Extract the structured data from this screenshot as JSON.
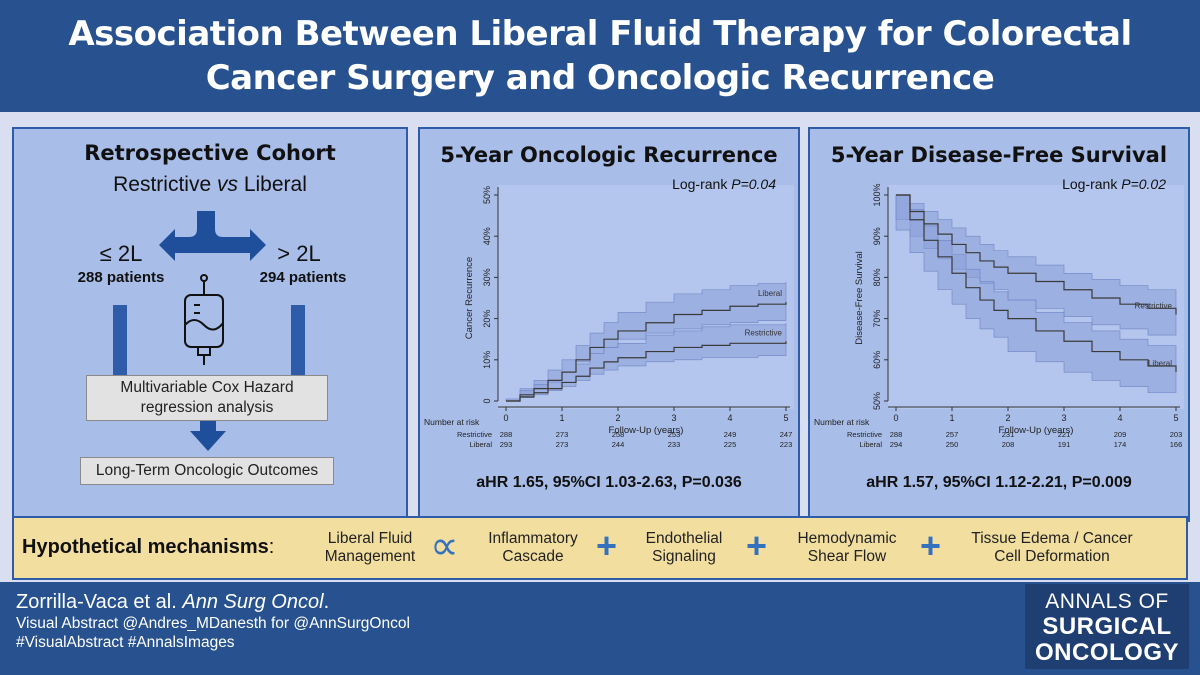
{
  "header": {
    "title": "Association Between Liberal Fluid Therapy for Colorectal Cancer Surgery and Oncologic Recurrence"
  },
  "design": {
    "heading": "Retrospective Cohort",
    "subheading_left": "Restrictive",
    "subheading_vs": "vs",
    "subheading_right": "Liberal",
    "left_group_label": "≤ 2L",
    "left_group_patients": "288 patients",
    "right_group_label": "> 2L",
    "right_group_patients": "294 patients",
    "analysis_box": "Multivariable Cox Hazard regression analysis",
    "outcome_box": "Long-Term Oncologic Outcomes"
  },
  "chart_data": [
    {
      "type": "line",
      "title": "5-Year Oncologic Recurrence",
      "annotation_prefix": "Log-rank ",
      "annotation_p": "P=0.04",
      "xlabel": "Follow-Up (years)",
      "ylabel": "Cancer Recurrence",
      "xlim": [
        0,
        5
      ],
      "ylim": [
        0,
        50
      ],
      "x_ticks": [
        "0",
        "1",
        "2",
        "3",
        "4",
        "5"
      ],
      "y_ticks": [
        "0",
        "10%",
        "20%",
        "30%",
        "40%",
        "50%"
      ],
      "series": [
        {
          "name": "Liberal",
          "x": [
            0,
            0.25,
            0.5,
            0.75,
            1.0,
            1.25,
            1.5,
            1.75,
            2.0,
            2.5,
            3.0,
            3.5,
            4.0,
            4.5,
            5.0
          ],
          "values": [
            0,
            1.5,
            3,
            5,
            7,
            10,
            13,
            15,
            17,
            19,
            21,
            22,
            23,
            23.5,
            24
          ],
          "ci_low": [
            0,
            0.5,
            1.5,
            3,
            4.5,
            7,
            9.5,
            11.5,
            13,
            15,
            16.5,
            17.5,
            18.5,
            19,
            19.5
          ],
          "ci_high": [
            0,
            3,
            5,
            7.5,
            10,
            13.5,
            16.5,
            19,
            21.5,
            24,
            26,
            27,
            28,
            28.5,
            29
          ]
        },
        {
          "name": "Restrictive",
          "x": [
            0,
            0.25,
            0.5,
            0.75,
            1.0,
            1.25,
            1.5,
            1.75,
            2.0,
            2.5,
            3.0,
            3.5,
            4.0,
            4.5,
            5.0
          ],
          "values": [
            0,
            1,
            2,
            3,
            4.5,
            6,
            8,
            9.5,
            10.5,
            12,
            13,
            13.5,
            14,
            14,
            14.5
          ],
          "ci_low": [
            0,
            0,
            0.8,
            1.5,
            2.5,
            3.5,
            5,
            6.5,
            7.5,
            8.5,
            9.5,
            10,
            10.5,
            10.5,
            11
          ],
          "ci_high": [
            0,
            2.5,
            4,
            5,
            7,
            9,
            11.5,
            13,
            14,
            16,
            17,
            18,
            18.5,
            18.5,
            19
          ]
        }
      ],
      "risk_table": {
        "title": "Number at risk",
        "rows": [
          {
            "label": "Restrictive",
            "values": [
              "288",
              "273",
              "258",
              "253",
              "249",
              "247"
            ]
          },
          {
            "label": "Liberal",
            "values": [
              "293",
              "273",
              "244",
              "233",
              "225",
              "223"
            ]
          }
        ]
      },
      "hr_text": "aHR 1.65, 95%CI 1.03-2.63, P=0.036"
    },
    {
      "type": "line",
      "title": "5-Year Disease-Free Survival",
      "annotation_prefix": "Log-rank ",
      "annotation_p": "P=0.02",
      "xlabel": "Follow-Up (years)",
      "ylabel": "Disease-Free Survival",
      "xlim": [
        0,
        5
      ],
      "ylim": [
        50,
        100
      ],
      "x_ticks": [
        "0",
        "1",
        "2",
        "3",
        "4",
        "5"
      ],
      "y_ticks": [
        "50%",
        "60%",
        "70%",
        "80%",
        "90%",
        "100%"
      ],
      "series": [
        {
          "name": "Restrictive",
          "x": [
            0,
            0.25,
            0.5,
            0.75,
            1.0,
            1.25,
            1.5,
            1.75,
            2.0,
            2.5,
            3.0,
            3.5,
            4.0,
            4.5,
            5.0
          ],
          "values": [
            100,
            96,
            93,
            90.5,
            88,
            86,
            84,
            82.5,
            81,
            79,
            77,
            75,
            73.5,
            72.5,
            71
          ],
          "ci_low": [
            100,
            94,
            90,
            87,
            84.5,
            82,
            80,
            78.5,
            77,
            74.5,
            72.5,
            70.5,
            68.5,
            67.5,
            66
          ],
          "ci_high": [
            100,
            98,
            96,
            94,
            92,
            90,
            88,
            86.5,
            85,
            83,
            81,
            79.5,
            78,
            77,
            76
          ]
        },
        {
          "name": "Liberal",
          "x": [
            0,
            0.25,
            0.5,
            0.75,
            1.0,
            1.25,
            1.5,
            1.75,
            2.0,
            2.5,
            3.0,
            3.5,
            4.0,
            4.5,
            5.0
          ],
          "values": [
            100,
            94,
            89,
            85,
            81,
            77.5,
            74.5,
            72,
            70,
            67,
            64.5,
            62,
            60,
            58.5,
            57
          ],
          "ci_low": [
            100,
            91.5,
            86,
            81.5,
            77,
            73.5,
            70,
            67.5,
            65.5,
            62,
            59.5,
            57,
            55,
            53.5,
            52
          ],
          "ci_high": [
            100,
            96.5,
            92.5,
            89,
            85.5,
            82,
            79,
            76.5,
            74.5,
            71.5,
            69,
            67,
            65,
            63.5,
            62
          ]
        }
      ],
      "risk_table": {
        "title": "Number at risk",
        "rows": [
          {
            "label": "Restrictive",
            "values": [
              "288",
              "257",
              "231",
              "221",
              "209",
              "203"
            ]
          },
          {
            "label": "Liberal",
            "values": [
              "294",
              "250",
              "208",
              "191",
              "174",
              "166"
            ]
          }
        ]
      },
      "hr_text": "aHR 1.57, 95%CI 1.12-2.21, P=0.009"
    }
  ],
  "mechanisms": {
    "label": "Hypothetical mechanisms",
    "colon": ":",
    "items": [
      {
        "line1": "Liberal Fluid",
        "line2": "Management"
      },
      {
        "line1": "Inflammatory",
        "line2": "Cascade"
      },
      {
        "line1": "Endothelial",
        "line2": "Signaling"
      },
      {
        "line1": "Hemodynamic",
        "line2": "Shear Flow"
      },
      {
        "line1": "Tissue Edema / Cancer",
        "line2": "Cell Deformation"
      }
    ],
    "proportional_symbol": "∝",
    "plus_symbol": "+"
  },
  "footer": {
    "authors": "Zorrilla-Vaca et al.",
    "journal": "Ann Surg Oncol",
    "journal_period": ".",
    "credit": "Visual Abstract @Andres_MDanesth for @AnnSurgOncol",
    "hashtags": "#VisualAbstract #AnnalsImages"
  },
  "logo": {
    "line1": "ANNALS OF",
    "line2": "SURGICAL",
    "line3": "ONCOLOGY"
  },
  "colors": {
    "header_bg": "#27528f",
    "panel_bg": "#a8bde8",
    "panel_border": "#2e5ca8",
    "arrow_blue": "#1f4f9b",
    "mechanism_bg": "#f2dfa0",
    "ci_band": "#8a9fd8",
    "curve": "#3a3a3a"
  }
}
